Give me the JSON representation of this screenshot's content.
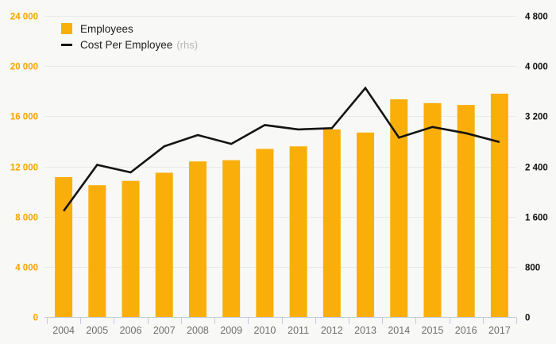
{
  "page": {
    "background": "#f8f8f6",
    "gridline_color": "#e9e9e9",
    "axis_line_color": "#c3cbde",
    "x_label_color": "#6e6e6e"
  },
  "legend": {
    "employees_label": "Employees",
    "cost_label": "Cost Per Employee",
    "cost_suffix": "(rhs)"
  },
  "chart_data": {
    "type": "combo-bar-line",
    "title": "",
    "xlabel": "",
    "ylabel_left": "",
    "ylabel_right": "",
    "grid": "horizontal",
    "legend_position": "top-left",
    "categories": [
      "2004",
      "2005",
      "2006",
      "2007",
      "2008",
      "2009",
      "2010",
      "2011",
      "2012",
      "2013",
      "2014",
      "2015",
      "2016",
      "2017"
    ],
    "series": [
      {
        "name": "Employees",
        "type": "bar",
        "axis": "left",
        "color": "#faae0a",
        "values": [
          11150,
          10500,
          10850,
          11500,
          12400,
          12500,
          13400,
          13600,
          14950,
          14700,
          17350,
          17050,
          16900,
          17800
        ]
      },
      {
        "name": "Cost Per Employee (rhs)",
        "type": "line",
        "axis": "right",
        "color": "#141414",
        "values": [
          1690,
          2425,
          2305,
          2720,
          2900,
          2760,
          3060,
          2990,
          3010,
          3650,
          2860,
          3030,
          2930,
          2790
        ]
      }
    ],
    "left_axis": {
      "min": 0,
      "max": 24000,
      "step": 4000,
      "tick_labels": [
        "0",
        "4 000",
        "8 000",
        "12 000",
        "16 000",
        "20 000",
        "24 000"
      ],
      "color": "#f5a400"
    },
    "right_axis": {
      "min": 0,
      "max": 4800,
      "step": 800,
      "tick_labels": [
        "0",
        "800",
        "1 600",
        "2 400",
        "3 200",
        "4 000",
        "4 800"
      ],
      "color": "#111111"
    }
  }
}
